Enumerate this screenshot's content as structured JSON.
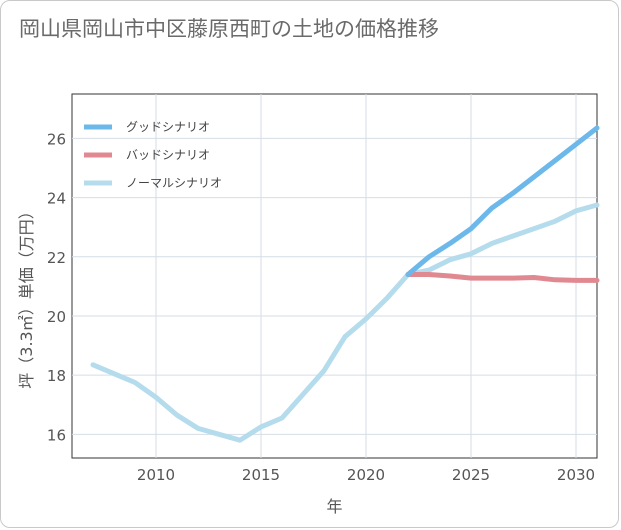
{
  "title": "岡山県岡山市中区藤原西町の土地の価格推移",
  "chart_data": {
    "type": "line",
    "title": "岡山県岡山市中区藤原西町の土地の価格推移",
    "xlabel": "年",
    "ylabel": "坪（3.3㎡）単価（万円）",
    "xlim": [
      2006,
      2031
    ],
    "ylim": [
      15.2,
      27.5
    ],
    "xticks": [
      2010,
      2015,
      2020,
      2025,
      2030
    ],
    "yticks": [
      16,
      18,
      20,
      22,
      24,
      26
    ],
    "grid": true,
    "legend_position": "top-left",
    "series": [
      {
        "name": "グッドシナリオ",
        "color": "#6cb8ea",
        "x": [
          2022,
          2023,
          2024,
          2025,
          2026,
          2027,
          2028,
          2029,
          2030,
          2031
        ],
        "values": [
          21.4,
          22.0,
          22.45,
          22.95,
          23.65,
          24.15,
          24.7,
          25.25,
          25.8,
          26.35
        ]
      },
      {
        "name": "バッドシナリオ",
        "color": "#e08990",
        "x": [
          2022,
          2023,
          2024,
          2025,
          2026,
          2027,
          2028,
          2029,
          2030,
          2031
        ],
        "values": [
          21.4,
          21.4,
          21.35,
          21.28,
          21.28,
          21.28,
          21.3,
          21.22,
          21.2,
          21.2
        ]
      },
      {
        "name": "ノーマルシナリオ",
        "color": "#b5dcec",
        "x": [
          2007,
          2008,
          2009,
          2010,
          2011,
          2012,
          2013,
          2014,
          2015,
          2016,
          2017,
          2018,
          2019,
          2020,
          2021,
          2022,
          2023,
          2024,
          2025,
          2026,
          2027,
          2028,
          2029,
          2030,
          2031
        ],
        "values": [
          18.35,
          18.05,
          17.75,
          17.25,
          16.65,
          16.2,
          16.0,
          15.8,
          16.25,
          16.55,
          17.35,
          18.15,
          19.3,
          19.9,
          20.6,
          21.4,
          21.55,
          21.9,
          22.1,
          22.45,
          22.7,
          22.95,
          23.2,
          23.55,
          23.75
        ]
      }
    ]
  }
}
